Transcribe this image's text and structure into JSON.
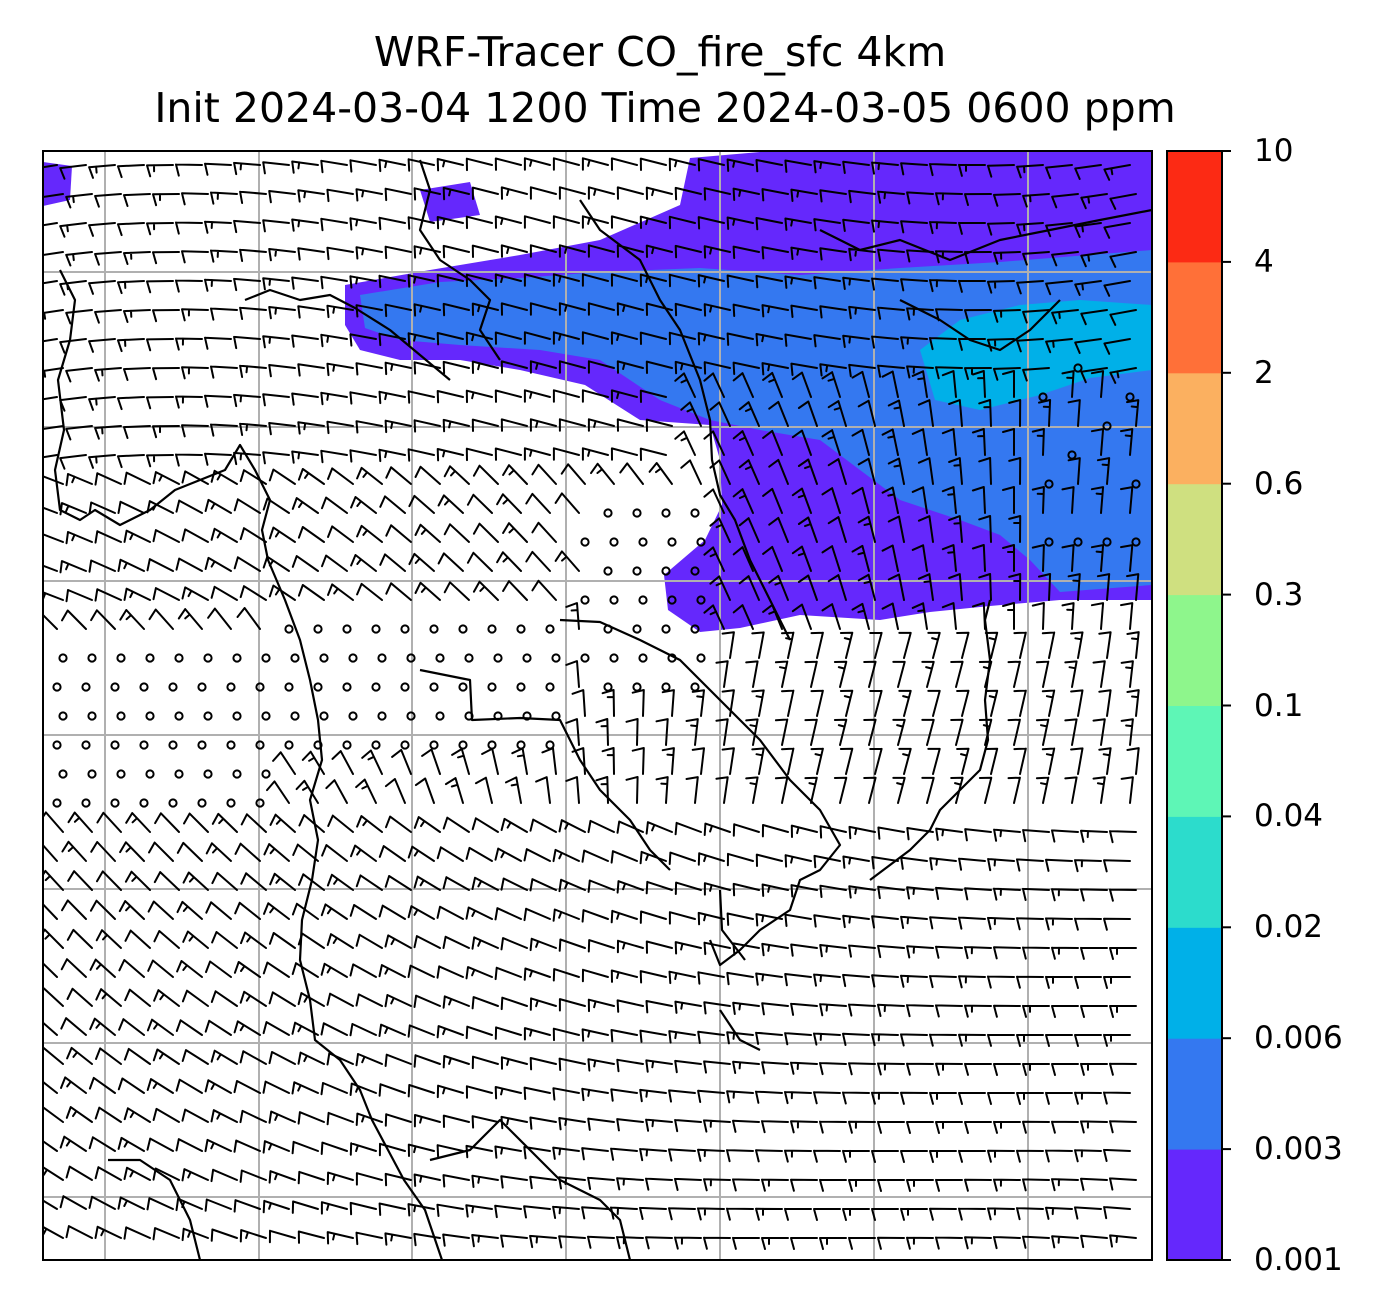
{
  "title": {
    "line1": "WRF-Tracer CO_fire_sfc 4km",
    "line2": "Init 2024-03-04 1200 Time 2024-03-05 0600 ppm"
  },
  "colorbar": {
    "levels": [
      "0.001",
      "0.003",
      "0.006",
      "0.02",
      "0.04",
      "0.1",
      "0.3",
      "0.6",
      "2",
      "4",
      "10"
    ],
    "colors": [
      "#6528fc",
      "#3478f0",
      "#00b0e8",
      "#2cdccc",
      "#5ef6b6",
      "#8ef68c",
      "#cfe080",
      "#fbb060",
      "#ff7038",
      "#fc2a14"
    ]
  },
  "map": {
    "background_color": "#ffffff",
    "gridline_color": "#b0b0b0",
    "coastline_color": "#000000",
    "wind_barb_color": "#000000",
    "tracer_field": "CO_fire_sfc",
    "units": "ppm"
  }
}
